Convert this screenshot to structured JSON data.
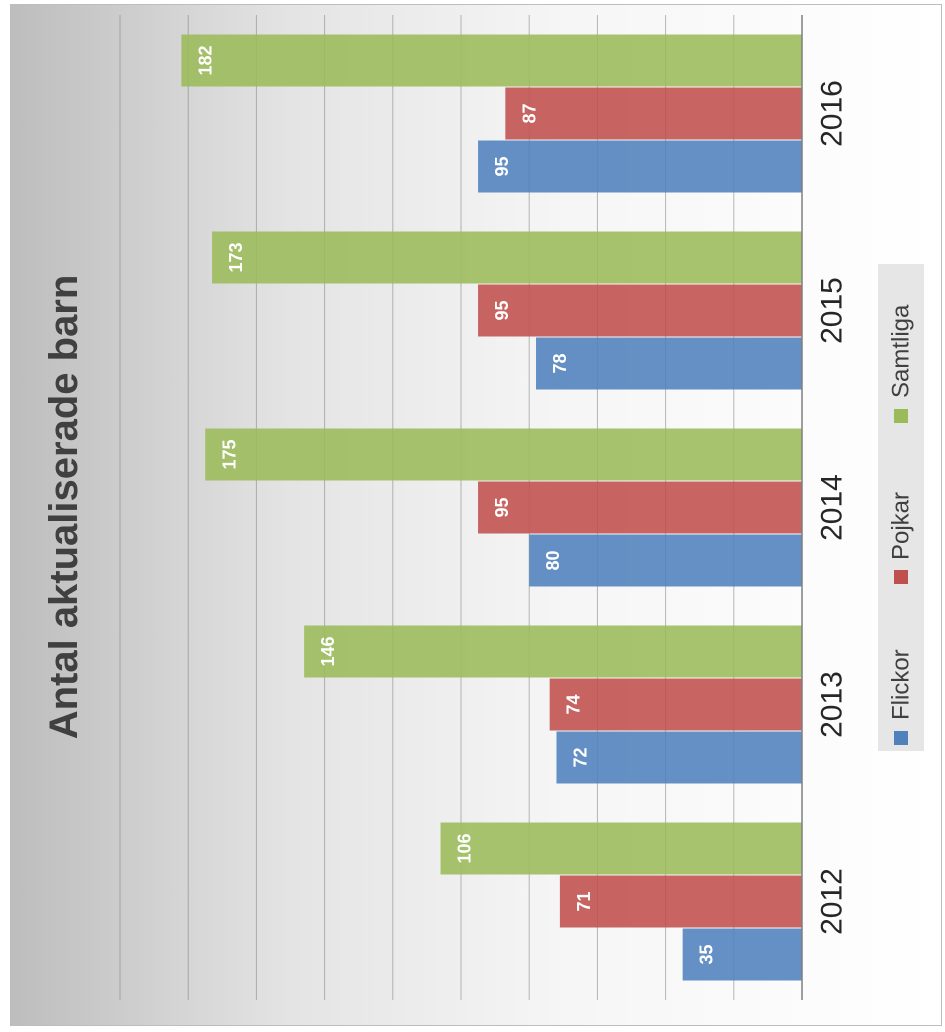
{
  "chart_data": {
    "type": "bar",
    "orientation": "rotated 90 degrees",
    "title": "Antal aktualiserade barn",
    "categories": [
      "2012",
      "2013",
      "2014",
      "2015",
      "2016"
    ],
    "series": [
      {
        "name": "Flickor",
        "color": "#4F81BD",
        "values": [
          35,
          72,
          80,
          78,
          95
        ]
      },
      {
        "name": "Pojkar",
        "color": "#C0504D",
        "values": [
          71,
          74,
          95,
          95,
          87
        ]
      },
      {
        "name": "Samtliga",
        "color": "#9BBB59",
        "values": [
          106,
          146,
          175,
          173,
          182
        ]
      }
    ],
    "ylim": [
      0,
      200
    ],
    "gridlines": true,
    "data_labels": true,
    "legend_position": "bottom"
  }
}
